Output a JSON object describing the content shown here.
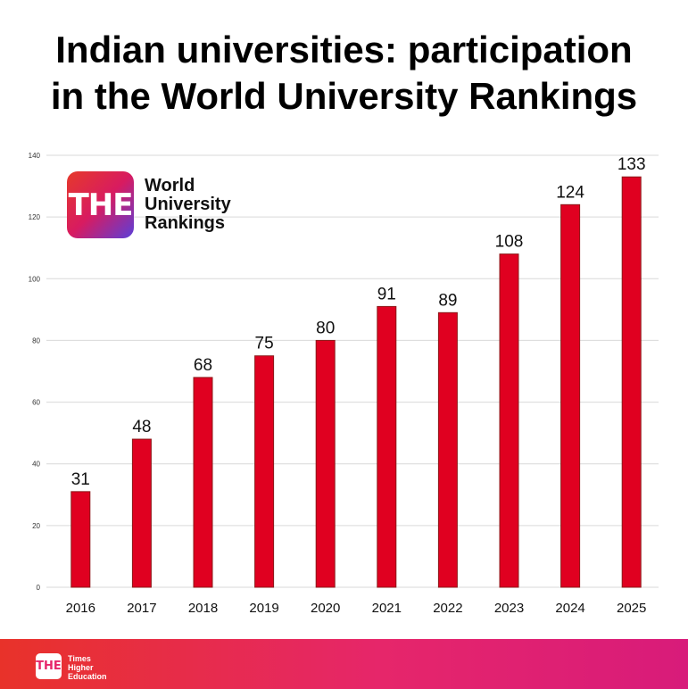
{
  "header": {
    "title_line1": "Indian universities: participation",
    "title_line2": "in the World University Rankings"
  },
  "logo": {
    "badge": "THE",
    "line1": "World",
    "line2": "University",
    "line3": "Rankings"
  },
  "footer": {
    "badge": "THE",
    "line1": "Times",
    "line2": "Higher",
    "line3": "Education"
  },
  "colors": {
    "bar": "#e00020",
    "bar_stroke": "#8b1a1a",
    "grid": "#d9d9d9"
  },
  "chart_data": {
    "type": "bar",
    "title": "Indian universities: participation in the World University Rankings",
    "categories": [
      "2016",
      "2017",
      "2018",
      "2019",
      "2020",
      "2021",
      "2022",
      "2023",
      "2024",
      "2025"
    ],
    "values": [
      31,
      48,
      68,
      75,
      80,
      91,
      89,
      108,
      124,
      133
    ],
    "ylim": [
      0,
      140
    ],
    "yticks": [
      0,
      20,
      40,
      60,
      80,
      100,
      120,
      140
    ],
    "xlabel": "",
    "ylabel": "",
    "grid": true
  }
}
